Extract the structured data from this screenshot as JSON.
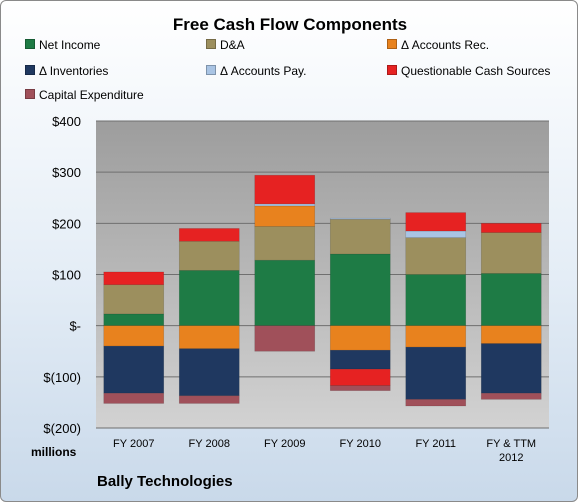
{
  "chart_data": {
    "type": "bar",
    "stacked": true,
    "title": "Free Cash Flow Components",
    "unit_label": "millions",
    "footer": "Bally Technologies",
    "categories": [
      "FY 2007",
      "FY 2008",
      "FY 2009",
      "FY 2010",
      "FY 2011",
      "FY & TTM 2012"
    ],
    "ylim": [
      -200,
      400
    ],
    "y_ticks": [
      {
        "value": 400,
        "label": "$400"
      },
      {
        "value": 300,
        "label": "$300"
      },
      {
        "value": 200,
        "label": "$200"
      },
      {
        "value": 100,
        "label": "$100"
      },
      {
        "value": 0,
        "label": "$-"
      },
      {
        "value": -100,
        "label": "$(100)"
      },
      {
        "value": -200,
        "label": "$(200)"
      }
    ],
    "grid": true,
    "legend_position": "top",
    "series": [
      {
        "name": "Net Income",
        "color": "#1e7b45",
        "values": [
          23,
          108,
          128,
          140,
          100,
          102
        ]
      },
      {
        "name": "D&A",
        "color": "#9c8f5e",
        "values": [
          57,
          57,
          66,
          68,
          72,
          80
        ]
      },
      {
        "name": "Δ Accounts Rec.",
        "color": "#e8821e",
        "values": [
          -40,
          -45,
          40,
          -48,
          -42,
          -35
        ]
      },
      {
        "name": "Δ Inventories",
        "color": "#1f3860",
        "values": [
          -92,
          -92,
          0,
          -37,
          -102,
          -97
        ]
      },
      {
        "name": "Δ Accounts Pay.",
        "color": "#a9c4e4",
        "values": [
          0,
          0,
          4,
          2,
          13,
          0
        ]
      },
      {
        "name": "Questionable Cash Sources",
        "color": "#e62222",
        "values": [
          25,
          25,
          56,
          -32,
          36,
          18
        ]
      },
      {
        "name": "Capital Expenditure",
        "color": "#a0505a",
        "values": [
          -20,
          -15,
          -50,
          -10,
          -13,
          -12
        ]
      }
    ]
  }
}
